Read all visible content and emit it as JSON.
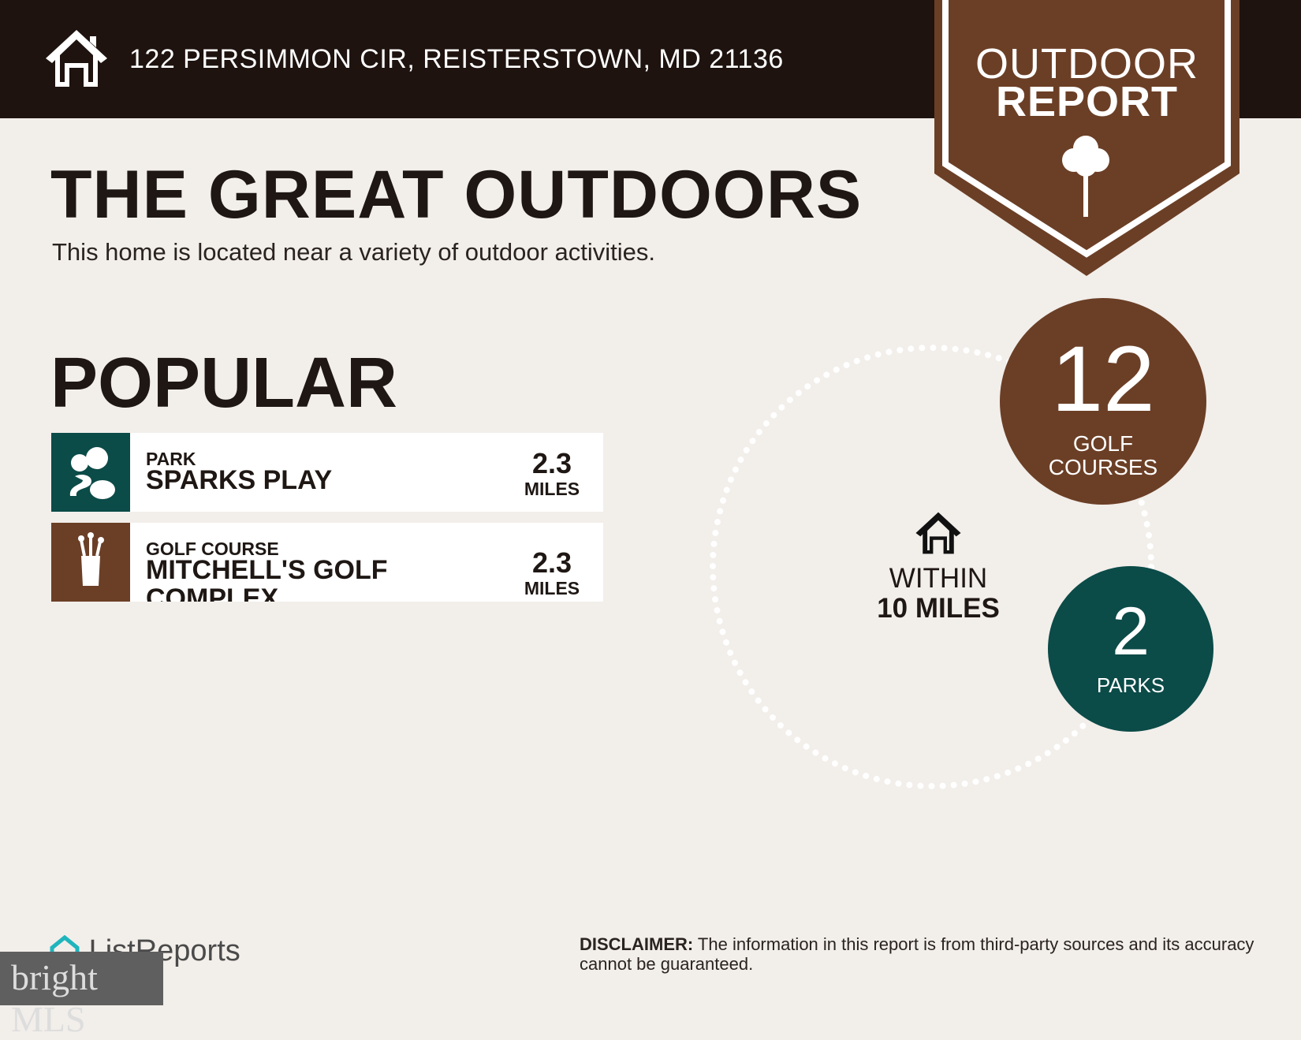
{
  "header": {
    "address": "122 PERSIMMON CIR, REISTERSTOWN, MD 21136",
    "badge_line1": "OUTDOOR",
    "badge_line2": "REPORT"
  },
  "main": {
    "title": "THE GREAT OUTDOORS",
    "subtitle": "This home is located near a variety of outdoor activities.",
    "section": "POPULAR",
    "items": [
      {
        "type": "PARK",
        "name": "SPARKS PLAY",
        "distance": "2.3",
        "unit": "MILES",
        "icon": "park-icon"
      },
      {
        "type": "GOLF COURSE",
        "name": "MITCHELL'S GOLF COMPLEX",
        "distance": "2.3",
        "unit": "MILES",
        "icon": "golf-bag-icon"
      }
    ]
  },
  "summary": {
    "within_line1": "WITHIN",
    "within_line2": "10 MILES",
    "golf_count": "12",
    "golf_label1": "GOLF",
    "golf_label2": "COURSES",
    "parks_count": "2",
    "parks_label": "PARKS"
  },
  "footer": {
    "brand": "ListReports",
    "mls_logo": "bright MLS",
    "disclaimer_label": "DISCLAIMER:",
    "disclaimer_text": " The information in this report is from third-party sources and its accuracy cannot be guaranteed."
  },
  "colors": {
    "header": "#1e130f",
    "brown": "#6b3f26",
    "teal": "#0b4b48",
    "background": "#f2eeea"
  }
}
